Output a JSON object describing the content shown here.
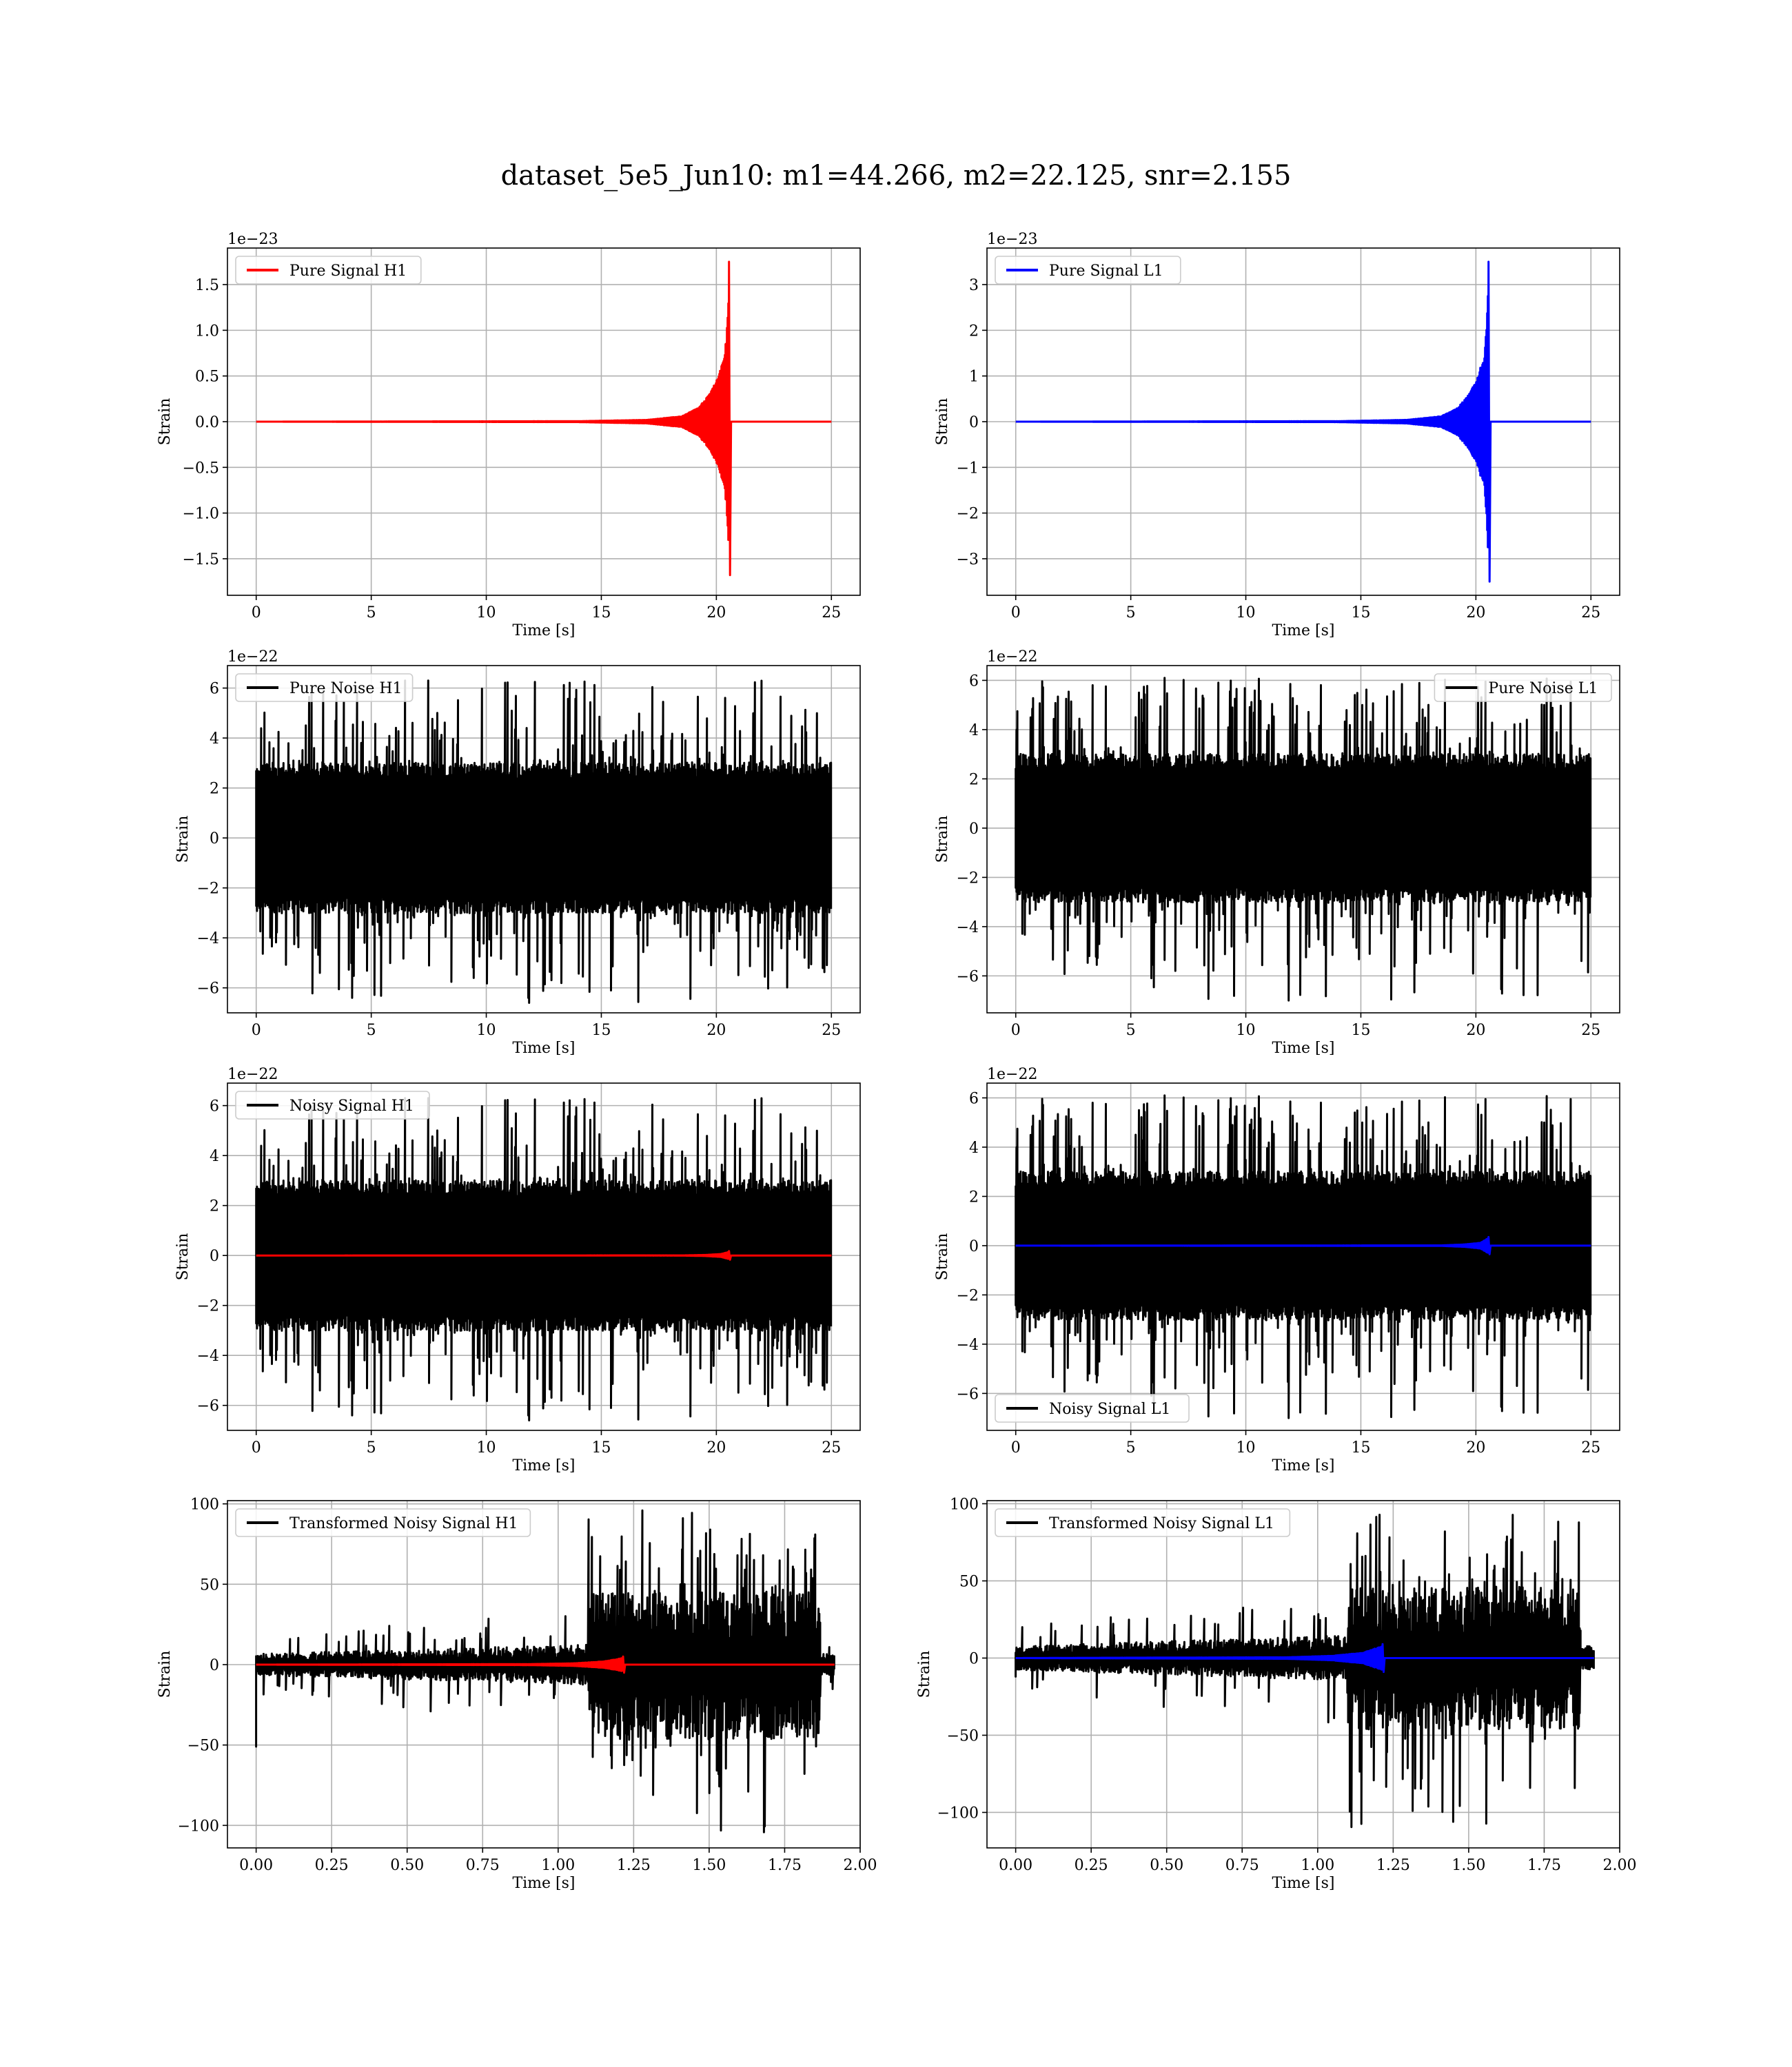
{
  "figure": {
    "suptitle": "dataset_5e5_Jun10: m1=44.266, m2=22.125, snr=2.155"
  },
  "colors": {
    "h1_signal": "#ff0000",
    "l1_signal": "#0000ff",
    "noise": "#000000",
    "grid": "#b0b0b0",
    "legend_border": "#cccccc"
  },
  "chart_data": [
    {
      "id": "pure-signal-h1",
      "type": "line",
      "xlabel": "Time [s]",
      "ylabel": "Strain",
      "offset_text": "1e−23",
      "xlim": [
        -1.25,
        26.25
      ],
      "ylim": [
        -1.9,
        1.9
      ],
      "xticks": [
        0,
        5,
        10,
        15,
        20,
        25
      ],
      "xtick_labels": [
        "0",
        "5",
        "10",
        "15",
        "20",
        "25"
      ],
      "yticks": [
        -1.5,
        -1.0,
        -0.5,
        0.0,
        0.5,
        1.0,
        1.5
      ],
      "ytick_labels": [
        "−1.5",
        "−1.0",
        "−0.5",
        "0.0",
        "0.5",
        "1.0",
        "1.5"
      ],
      "legend": {
        "loc": "upper-left",
        "entries": [
          {
            "label": "Pure Signal H1",
            "color": "#ff0000"
          }
        ]
      },
      "series": [
        {
          "name": "Pure Signal H1",
          "color": "#ff0000",
          "kind": "chirp",
          "x_start": 0,
          "x_end": 25,
          "merger_t": 20.55,
          "peak_pos": 1.75,
          "peak_neg": -1.68,
          "envelope": [
            [
              0,
              0.0
            ],
            [
              14,
              0.005
            ],
            [
              17,
              0.02
            ],
            [
              18.5,
              0.06
            ],
            [
              19.2,
              0.15
            ],
            [
              19.7,
              0.3
            ],
            [
              20.0,
              0.45
            ],
            [
              20.2,
              0.6
            ],
            [
              20.35,
              0.7
            ],
            [
              20.45,
              1.0
            ],
            [
              20.52,
              1.4
            ]
          ]
        }
      ]
    },
    {
      "id": "pure-signal-l1",
      "type": "line",
      "xlabel": "Time [s]",
      "ylabel": "Strain",
      "offset_text": "1e−23",
      "xlim": [
        -1.25,
        26.25
      ],
      "ylim": [
        -3.8,
        3.8
      ],
      "xticks": [
        0,
        5,
        10,
        15,
        20,
        25
      ],
      "xtick_labels": [
        "0",
        "5",
        "10",
        "15",
        "20",
        "25"
      ],
      "yticks": [
        -3,
        -2,
        -1,
        0,
        1,
        2,
        3
      ],
      "ytick_labels": [
        "−3",
        "−2",
        "−1",
        "0",
        "1",
        "2",
        "3"
      ],
      "legend": {
        "loc": "upper-left",
        "entries": [
          {
            "label": "Pure Signal L1",
            "color": "#0000ff"
          }
        ]
      },
      "series": [
        {
          "name": "Pure Signal L1",
          "color": "#0000ff",
          "kind": "chirp",
          "x_start": 0,
          "x_end": 25,
          "merger_t": 20.55,
          "peak_pos": 3.5,
          "peak_neg": -3.5,
          "envelope": [
            [
              0,
              0.0
            ],
            [
              14,
              0.01
            ],
            [
              17,
              0.04
            ],
            [
              18.5,
              0.12
            ],
            [
              19.2,
              0.3
            ],
            [
              19.7,
              0.6
            ],
            [
              20.0,
              0.9
            ],
            [
              20.2,
              1.2
            ],
            [
              20.35,
              1.35
            ],
            [
              20.45,
              2.0
            ],
            [
              20.52,
              2.8
            ]
          ]
        }
      ]
    },
    {
      "id": "pure-noise-h1",
      "type": "line",
      "xlabel": "Time [s]",
      "ylabel": "Strain",
      "offset_text": "1e−22",
      "xlim": [
        -1.25,
        26.25
      ],
      "ylim": [
        -7.0,
        6.9
      ],
      "xticks": [
        0,
        5,
        10,
        15,
        20,
        25
      ],
      "xtick_labels": [
        "0",
        "5",
        "10",
        "15",
        "20",
        "25"
      ],
      "yticks": [
        -6,
        -4,
        -2,
        0,
        2,
        4,
        6
      ],
      "ytick_labels": [
        "−6",
        "−4",
        "−2",
        "0",
        "2",
        "4",
        "6"
      ],
      "legend": {
        "loc": "upper-left",
        "entries": [
          {
            "label": "Pure Noise H1",
            "color": "#000000"
          }
        ]
      },
      "series": [
        {
          "name": "Pure Noise H1",
          "color": "#000000",
          "kind": "noise",
          "x_start": 0,
          "x_end": 25,
          "core": 2.9,
          "max_pos": 6.3,
          "max_neg": -6.6,
          "seed": 11
        }
      ]
    },
    {
      "id": "pure-noise-l1",
      "type": "line",
      "xlabel": "Time [s]",
      "ylabel": "Strain",
      "offset_text": "1e−22",
      "xlim": [
        -1.25,
        26.25
      ],
      "ylim": [
        -7.5,
        6.6
      ],
      "xticks": [
        0,
        5,
        10,
        15,
        20,
        25
      ],
      "xtick_labels": [
        "0",
        "5",
        "10",
        "15",
        "20",
        "25"
      ],
      "yticks": [
        -6,
        -4,
        -2,
        0,
        2,
        4,
        6
      ],
      "ytick_labels": [
        "−6",
        "−4",
        "−2",
        "0",
        "2",
        "4",
        "6"
      ],
      "legend": {
        "loc": "upper-right",
        "entries": [
          {
            "label": "Pure Noise L1",
            "color": "#000000"
          }
        ]
      },
      "series": [
        {
          "name": "Pure Noise L1",
          "color": "#000000",
          "kind": "noise",
          "x_start": 0,
          "x_end": 25,
          "core": 2.9,
          "max_pos": 6.1,
          "max_neg": -7.0,
          "seed": 23
        }
      ]
    },
    {
      "id": "noisy-signal-h1",
      "type": "line",
      "xlabel": "Time [s]",
      "ylabel": "Strain",
      "offset_text": "1e−22",
      "xlim": [
        -1.25,
        26.25
      ],
      "ylim": [
        -7.0,
        6.9
      ],
      "xticks": [
        0,
        5,
        10,
        15,
        20,
        25
      ],
      "xtick_labels": [
        "0",
        "5",
        "10",
        "15",
        "20",
        "25"
      ],
      "yticks": [
        -6,
        -4,
        -2,
        0,
        2,
        4,
        6
      ],
      "ytick_labels": [
        "−6",
        "−4",
        "−2",
        "0",
        "2",
        "4",
        "6"
      ],
      "legend": {
        "loc": "upper-left",
        "entries": [
          {
            "label": "Noisy Signal H1",
            "color": "#000000"
          }
        ]
      },
      "series": [
        {
          "name": "Noisy Signal H1",
          "color": "#000000",
          "kind": "noise",
          "x_start": 0,
          "x_end": 25,
          "core": 2.9,
          "max_pos": 6.3,
          "max_neg": -6.6,
          "seed": 11
        },
        {
          "color": "#ff0000",
          "kind": "chirp",
          "x_start": 0,
          "x_end": 25,
          "merger_t": 20.55,
          "peak_pos": 0.18,
          "peak_neg": -0.17,
          "envelope": [
            [
              0,
              0.0
            ],
            [
              18.5,
              0.005
            ],
            [
              19.5,
              0.02
            ],
            [
              20.2,
              0.06
            ],
            [
              20.52,
              0.14
            ]
          ]
        }
      ]
    },
    {
      "id": "noisy-signal-l1",
      "type": "line",
      "xlabel": "Time [s]",
      "ylabel": "Strain",
      "offset_text": "1e−22",
      "xlim": [
        -1.25,
        26.25
      ],
      "ylim": [
        -7.5,
        6.6
      ],
      "xticks": [
        0,
        5,
        10,
        15,
        20,
        25
      ],
      "xtick_labels": [
        "0",
        "5",
        "10",
        "15",
        "20",
        "25"
      ],
      "yticks": [
        -6,
        -4,
        -2,
        0,
        2,
        4,
        6
      ],
      "ytick_labels": [
        "−6",
        "−4",
        "−2",
        "0",
        "2",
        "4",
        "6"
      ],
      "legend": {
        "loc": "lower-left",
        "entries": [
          {
            "label": "Noisy Signal L1",
            "color": "#000000"
          }
        ]
      },
      "series": [
        {
          "name": "Noisy Signal L1",
          "color": "#000000",
          "kind": "noise",
          "x_start": 0,
          "x_end": 25,
          "core": 2.9,
          "max_pos": 6.1,
          "max_neg": -7.0,
          "seed": 23
        },
        {
          "color": "#0000ff",
          "kind": "chirp",
          "x_start": 0,
          "x_end": 25,
          "merger_t": 20.55,
          "peak_pos": 0.35,
          "peak_neg": -0.35,
          "envelope": [
            [
              0,
              0.0
            ],
            [
              18.5,
              0.01
            ],
            [
              19.5,
              0.05
            ],
            [
              20.2,
              0.12
            ],
            [
              20.52,
              0.3
            ]
          ]
        }
      ]
    },
    {
      "id": "transformed-noisy-signal-h1",
      "type": "line",
      "xlabel": "Time [s]",
      "ylabel": "Strain",
      "offset_text": "",
      "xlim": [
        -0.095,
        2.0
      ],
      "ylim": [
        -114,
        102
      ],
      "xticks": [
        0,
        0.25,
        0.5,
        0.75,
        1.0,
        1.25,
        1.5,
        1.75,
        2.0
      ],
      "xtick_labels": [
        "0.00",
        "0.25",
        "0.50",
        "0.75",
        "1.00",
        "1.25",
        "1.50",
        "1.75",
        "2.00"
      ],
      "yticks": [
        -100,
        -50,
        0,
        50,
        100
      ],
      "ytick_labels": [
        "−100",
        "−50",
        "0",
        "50",
        "100"
      ],
      "legend": {
        "loc": "upper-left",
        "entries": [
          {
            "label": "Transformed Noisy Signal H1",
            "color": "#000000"
          }
        ]
      },
      "series": [
        {
          "name": "Transformed Noisy Signal H1",
          "color": "#000000",
          "kind": "whitened",
          "x_start": 0,
          "x_end": 1.915,
          "burst_t": 1.1,
          "fall_t": 1.87,
          "pre_level": 6,
          "burst_level": 42,
          "max_pos": 100,
          "max_neg": -110,
          "start_spike": -51,
          "seed": 5
        },
        {
          "color": "#ff0000",
          "kind": "chirp",
          "x_start": 0,
          "x_end": 1.915,
          "merger_t": 1.215,
          "peak_pos": 5,
          "peak_neg": -5,
          "envelope": [
            [
              0,
              0.0
            ],
            [
              0.9,
              0.3
            ],
            [
              1.05,
              0.8
            ],
            [
              1.15,
              2.0
            ],
            [
              1.21,
              4.0
            ]
          ]
        }
      ]
    },
    {
      "id": "transformed-noisy-signal-l1",
      "type": "line",
      "xlabel": "Time [s]",
      "ylabel": "Strain",
      "offset_text": "",
      "xlim": [
        -0.095,
        2.0
      ],
      "ylim": [
        -123,
        102
      ],
      "xticks": [
        0,
        0.25,
        0.5,
        0.75,
        1.0,
        1.25,
        1.5,
        1.75,
        2.0
      ],
      "xtick_labels": [
        "0.00",
        "0.25",
        "0.50",
        "0.75",
        "1.00",
        "1.25",
        "1.50",
        "1.75",
        "2.00"
      ],
      "yticks": [
        -100,
        -50,
        0,
        50,
        100
      ],
      "ytick_labels": [
        "−100",
        "−50",
        "0",
        "50",
        "100"
      ],
      "legend": {
        "loc": "upper-left",
        "entries": [
          {
            "label": "Transformed Noisy Signal L1",
            "color": "#000000"
          }
        ]
      },
      "series": [
        {
          "name": "Transformed Noisy Signal L1",
          "color": "#000000",
          "kind": "whitened",
          "x_start": 0,
          "x_end": 1.915,
          "burst_t": 1.1,
          "fall_t": 1.87,
          "pre_level": 7,
          "burst_level": 42,
          "max_pos": 95,
          "max_neg": -113,
          "start_spike": -12,
          "seed": 9
        },
        {
          "color": "#0000ff",
          "kind": "chirp",
          "x_start": 0,
          "x_end": 1.915,
          "merger_t": 1.215,
          "peak_pos": 9,
          "peak_neg": -9,
          "envelope": [
            [
              0,
              0.0
            ],
            [
              0.9,
              0.5
            ],
            [
              1.05,
              1.5
            ],
            [
              1.15,
              3.5
            ],
            [
              1.21,
              7.5
            ]
          ]
        }
      ]
    }
  ]
}
